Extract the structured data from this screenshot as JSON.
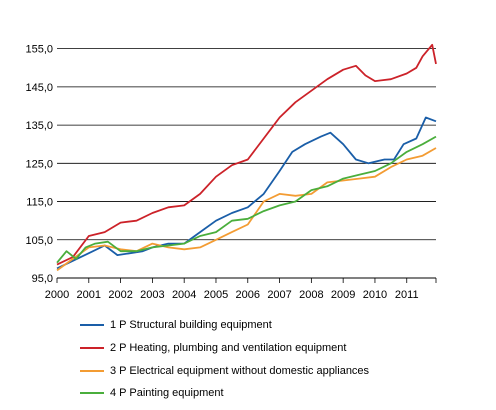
{
  "chart_data": {
    "type": "line",
    "x_tick_labels": [
      "2000",
      "2001",
      "2002",
      "2003",
      "2004",
      "2005",
      "2006",
      "2007",
      "2008",
      "2009",
      "2010",
      "2011"
    ],
    "y_tick_labels": [
      "95,0",
      "105,0",
      "115,0",
      "125,0",
      "135,0",
      "145,0",
      "155,0"
    ],
    "ylim": [
      95,
      157
    ],
    "xlim": [
      2000.0,
      2011.92
    ],
    "grid": "horizontal",
    "legend_placement": "bottom",
    "series": [
      {
        "name": "1 P Structural building equipment",
        "color": "#1a5ea8",
        "points": [
          [
            2000.0,
            97.5
          ],
          [
            2000.5,
            99.5
          ],
          [
            2001.0,
            101.5
          ],
          [
            2001.5,
            103.5
          ],
          [
            2001.9,
            101.0
          ],
          [
            2002.3,
            101.5
          ],
          [
            2002.7,
            102.0
          ],
          [
            2003.0,
            103.0
          ],
          [
            2003.5,
            104.0
          ],
          [
            2004.0,
            104.0
          ],
          [
            2004.5,
            107.0
          ],
          [
            2005.0,
            110.0
          ],
          [
            2005.5,
            112.0
          ],
          [
            2006.0,
            113.5
          ],
          [
            2006.5,
            117.0
          ],
          [
            2007.0,
            123.0
          ],
          [
            2007.4,
            128.0
          ],
          [
            2007.8,
            130.0
          ],
          [
            2008.3,
            132.0
          ],
          [
            2008.6,
            133.0
          ],
          [
            2009.0,
            130.0
          ],
          [
            2009.4,
            126.0
          ],
          [
            2009.8,
            125.0
          ],
          [
            2010.3,
            126.0
          ],
          [
            2010.6,
            126.0
          ],
          [
            2010.9,
            130.0
          ],
          [
            2011.3,
            131.5
          ],
          [
            2011.6,
            137.0
          ],
          [
            2011.92,
            136.0
          ]
        ]
      },
      {
        "name": "2 P Heating, plumbing and ventilation equipment",
        "color": "#cc2229",
        "points": [
          [
            2000.0,
            98.5
          ],
          [
            2000.5,
            100.5
          ],
          [
            2001.0,
            106.0
          ],
          [
            2001.5,
            107.0
          ],
          [
            2002.0,
            109.5
          ],
          [
            2002.5,
            110.0
          ],
          [
            2003.0,
            112.0
          ],
          [
            2003.5,
            113.5
          ],
          [
            2004.0,
            114.0
          ],
          [
            2004.5,
            117.0
          ],
          [
            2005.0,
            121.5
          ],
          [
            2005.5,
            124.5
          ],
          [
            2006.0,
            126.0
          ],
          [
            2006.5,
            131.5
          ],
          [
            2007.0,
            137.0
          ],
          [
            2007.5,
            141.0
          ],
          [
            2008.0,
            144.0
          ],
          [
            2008.5,
            147.0
          ],
          [
            2009.0,
            149.5
          ],
          [
            2009.4,
            150.5
          ],
          [
            2009.7,
            148.0
          ],
          [
            2010.0,
            146.5
          ],
          [
            2010.5,
            147.0
          ],
          [
            2011.0,
            148.5
          ],
          [
            2011.3,
            150.0
          ],
          [
            2011.5,
            153.0
          ],
          [
            2011.8,
            156.0
          ],
          [
            2011.92,
            151.0
          ]
        ]
      },
      {
        "name": "3 P Electrical equipment without domestic appliances",
        "color": "#f39c33",
        "points": [
          [
            2000.0,
            97.0
          ],
          [
            2000.5,
            100.0
          ],
          [
            2001.0,
            103.0
          ],
          [
            2001.5,
            103.5
          ],
          [
            2002.0,
            102.5
          ],
          [
            2002.5,
            102.0
          ],
          [
            2003.0,
            104.0
          ],
          [
            2003.5,
            103.0
          ],
          [
            2004.0,
            102.5
          ],
          [
            2004.5,
            103.0
          ],
          [
            2005.0,
            105.0
          ],
          [
            2005.5,
            107.0
          ],
          [
            2006.0,
            109.0
          ],
          [
            2006.5,
            115.0
          ],
          [
            2007.0,
            117.0
          ],
          [
            2007.5,
            116.5
          ],
          [
            2008.0,
            117.0
          ],
          [
            2008.5,
            120.0
          ],
          [
            2009.0,
            120.5
          ],
          [
            2009.5,
            121.0
          ],
          [
            2010.0,
            121.5
          ],
          [
            2010.5,
            124.0
          ],
          [
            2011.0,
            126.0
          ],
          [
            2011.5,
            127.0
          ],
          [
            2011.92,
            129.0
          ]
        ]
      },
      {
        "name": "4 P Painting equipment",
        "color": "#4aae3c",
        "points": [
          [
            2000.0,
            99.0
          ],
          [
            2000.3,
            102.0
          ],
          [
            2000.6,
            100.0
          ],
          [
            2000.9,
            103.0
          ],
          [
            2001.2,
            104.0
          ],
          [
            2001.6,
            104.5
          ],
          [
            2002.0,
            102.0
          ],
          [
            2002.5,
            102.0
          ],
          [
            2003.0,
            103.0
          ],
          [
            2003.5,
            103.5
          ],
          [
            2004.0,
            104.0
          ],
          [
            2004.5,
            106.0
          ],
          [
            2005.0,
            107.0
          ],
          [
            2005.5,
            110.0
          ],
          [
            2006.0,
            110.5
          ],
          [
            2006.5,
            112.5
          ],
          [
            2007.0,
            114.0
          ],
          [
            2007.5,
            115.0
          ],
          [
            2008.0,
            118.0
          ],
          [
            2008.5,
            119.0
          ],
          [
            2009.0,
            121.0
          ],
          [
            2009.5,
            122.0
          ],
          [
            2010.0,
            123.0
          ],
          [
            2010.5,
            125.0
          ],
          [
            2011.0,
            128.0
          ],
          [
            2011.5,
            130.0
          ],
          [
            2011.92,
            132.0
          ]
        ]
      }
    ]
  }
}
